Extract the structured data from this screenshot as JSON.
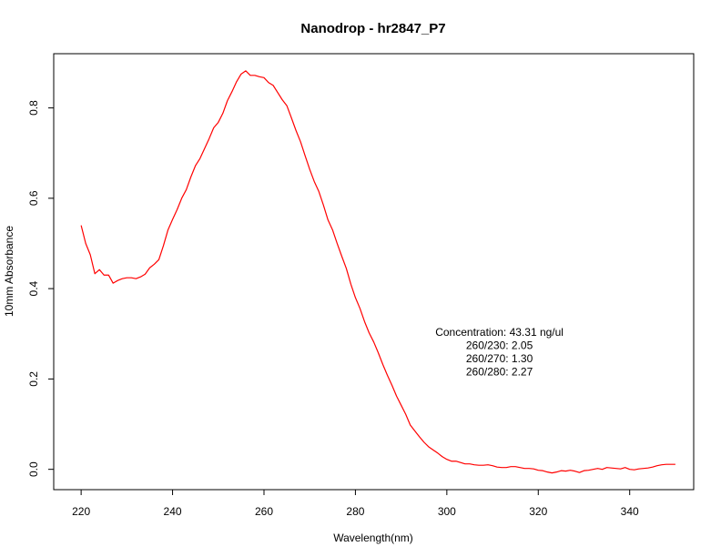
{
  "chart_data": {
    "type": "line",
    "title": "Nanodrop - hr2847_P7",
    "xlabel": "Wavelength(nm)",
    "ylabel": "10mm Absorbance",
    "xlim": [
      214,
      354
    ],
    "ylim": [
      -0.045,
      0.92
    ],
    "xticks": [
      220,
      240,
      260,
      280,
      300,
      320,
      340
    ],
    "yticks": [
      0.0,
      0.2,
      0.4,
      0.6,
      0.8
    ],
    "xtick_labels": [
      "220",
      "240",
      "260",
      "280",
      "300",
      "320",
      "340"
    ],
    "ytick_labels": [
      "0.0",
      "0.2",
      "0.4",
      "0.6",
      "0.8"
    ],
    "line_color": "#ff0000",
    "grid": false,
    "annotations": [
      "Concentration: 43.31 ng/ul",
      "260/230: 2.05",
      "260/270: 1.30",
      "260/280: 2.27"
    ],
    "series": [
      {
        "x": [
          220,
          221,
          222,
          223,
          224,
          225,
          226,
          227,
          228,
          229,
          230,
          231,
          232,
          233,
          234,
          235,
          236,
          237,
          238,
          239,
          240,
          241,
          242,
          243,
          244,
          245,
          246,
          247,
          248,
          249,
          250,
          251,
          252,
          253,
          254,
          255,
          256,
          257,
          258,
          259,
          260,
          261,
          262,
          263,
          264,
          265,
          266,
          267,
          268,
          269,
          270,
          271,
          272,
          273,
          274,
          275,
          276,
          277,
          278,
          279,
          280,
          281,
          282,
          283,
          284,
          285,
          286,
          287,
          288,
          289,
          290,
          291,
          292,
          293,
          294,
          295,
          296,
          297,
          298,
          299,
          300,
          301,
          302,
          303,
          304,
          305,
          306,
          307,
          308,
          309,
          310,
          311,
          312,
          313,
          314,
          315,
          316,
          317,
          318,
          319,
          320,
          321,
          322,
          323,
          324,
          325,
          326,
          327,
          328,
          329,
          330,
          331,
          332,
          333,
          334,
          335,
          336,
          337,
          338,
          339,
          340,
          341,
          342,
          343,
          344,
          345,
          346,
          347,
          348,
          349,
          350
        ],
        "y": [
          0.54,
          0.5,
          0.475,
          0.433,
          0.442,
          0.43,
          0.43,
          0.412,
          0.418,
          0.422,
          0.424,
          0.424,
          0.422,
          0.426,
          0.432,
          0.446,
          0.454,
          0.464,
          0.495,
          0.53,
          0.553,
          0.575,
          0.6,
          0.619,
          0.647,
          0.672,
          0.688,
          0.71,
          0.732,
          0.756,
          0.768,
          0.788,
          0.816,
          0.836,
          0.858,
          0.875,
          0.882,
          0.872,
          0.872,
          0.869,
          0.867,
          0.856,
          0.85,
          0.834,
          0.818,
          0.805,
          0.778,
          0.75,
          0.725,
          0.694,
          0.664,
          0.637,
          0.615,
          0.585,
          0.552,
          0.53,
          0.5,
          0.472,
          0.445,
          0.41,
          0.38,
          0.356,
          0.327,
          0.302,
          0.282,
          0.258,
          0.232,
          0.208,
          0.186,
          0.162,
          0.142,
          0.122,
          0.098,
          0.085,
          0.072,
          0.06,
          0.05,
          0.043,
          0.036,
          0.028,
          0.022,
          0.018,
          0.018,
          0.015,
          0.012,
          0.012,
          0.01,
          0.009,
          0.009,
          0.01,
          0.008,
          0.005,
          0.004,
          0.004,
          0.006,
          0.006,
          0.004,
          0.002,
          0.002,
          0.001,
          -0.002,
          -0.003,
          -0.006,
          -0.008,
          -0.006,
          -0.003,
          -0.004,
          -0.002,
          -0.004,
          -0.007,
          -0.003,
          -0.002,
          0.0,
          0.002,
          0.0,
          0.004,
          0.003,
          0.002,
          0.001,
          0.004,
          0.0,
          -0.001,
          0.001,
          0.002,
          0.003,
          0.005,
          0.008,
          0.01,
          0.011,
          0.011,
          0.011
        ]
      }
    ]
  }
}
